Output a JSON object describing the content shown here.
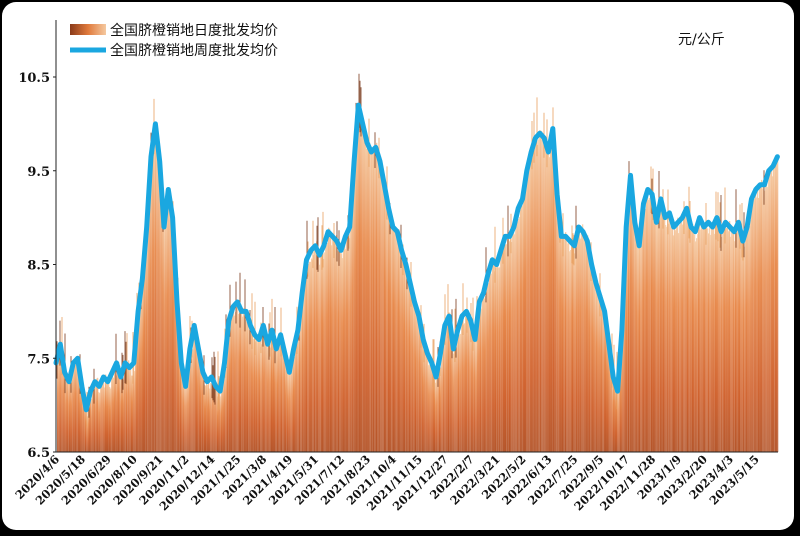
{
  "chart_data": {
    "type": "area",
    "title": "",
    "unit": "元/公斤",
    "ylim": [
      6.5,
      10.5
    ],
    "yticks": [
      "6.5",
      "7.5",
      "8.5",
      "9.5",
      "10.5"
    ],
    "ytick_values": [
      6.5,
      7.5,
      8.5,
      9.5,
      10.5
    ],
    "x_start": "2020-04-06",
    "x_end": "2023-06-20",
    "xtick_labels": [
      "2020/4/6",
      "2020/5/18",
      "2020/6/29",
      "2020/8/10",
      "2020/9/21",
      "2020/11/2",
      "2020/12/14",
      "2021/1/25",
      "2021/3/8",
      "2021/4/19",
      "2021/5/31",
      "2021/7/12",
      "2021/8/23",
      "2021/10/4",
      "2021/11/15",
      "2021/12/27",
      "2022/2/7",
      "2022/3/21",
      "2022/5/2",
      "2022/6/13",
      "2022/7/25",
      "2022/9/5",
      "2022/10/17",
      "2022/11/28",
      "2023/1/9",
      "2023/2/20",
      "2023/4/3",
      "2023/5/15"
    ],
    "legend_placement": "top-left",
    "series": [
      {
        "name": "全国脐橙销地日度批发均价",
        "kind": "daily-area",
        "color": "#e07a3c"
      },
      {
        "name": "全国脐橙销地周度批发均价",
        "kind": "weekly-line",
        "color": "#1aa7e0",
        "points": [
          [
            "2020-04-06",
            7.45
          ],
          [
            "2020-04-13",
            7.65
          ],
          [
            "2020-04-20",
            7.35
          ],
          [
            "2020-04-27",
            7.25
          ],
          [
            "2020-05-04",
            7.45
          ],
          [
            "2020-05-11",
            7.5
          ],
          [
            "2020-05-18",
            7.2
          ],
          [
            "2020-05-25",
            6.95
          ],
          [
            "2020-06-01",
            7.15
          ],
          [
            "2020-06-08",
            7.25
          ],
          [
            "2020-06-15",
            7.2
          ],
          [
            "2020-06-22",
            7.3
          ],
          [
            "2020-06-29",
            7.25
          ],
          [
            "2020-07-06",
            7.35
          ],
          [
            "2020-07-13",
            7.45
          ],
          [
            "2020-07-20",
            7.3
          ],
          [
            "2020-07-27",
            7.45
          ],
          [
            "2020-08-03",
            7.4
          ],
          [
            "2020-08-10",
            7.45
          ],
          [
            "2020-08-17",
            8.0
          ],
          [
            "2020-08-24",
            8.35
          ],
          [
            "2020-08-31",
            8.9
          ],
          [
            "2020-09-07",
            9.65
          ],
          [
            "2020-09-14",
            10.0
          ],
          [
            "2020-09-21",
            9.6
          ],
          [
            "2020-09-28",
            8.9
          ],
          [
            "2020-10-05",
            9.3
          ],
          [
            "2020-10-12",
            9.0
          ],
          [
            "2020-10-19",
            8.1
          ],
          [
            "2020-10-26",
            7.45
          ],
          [
            "2020-11-02",
            7.2
          ],
          [
            "2020-11-09",
            7.6
          ],
          [
            "2020-11-16",
            7.85
          ],
          [
            "2020-11-23",
            7.6
          ],
          [
            "2020-11-30",
            7.35
          ],
          [
            "2020-12-07",
            7.25
          ],
          [
            "2020-12-14",
            7.3
          ],
          [
            "2020-12-21",
            7.2
          ],
          [
            "2020-12-28",
            7.15
          ],
          [
            "2021-01-04",
            7.45
          ],
          [
            "2021-01-11",
            7.9
          ],
          [
            "2021-01-18",
            8.05
          ],
          [
            "2021-01-25",
            8.1
          ],
          [
            "2021-02-01",
            8.0
          ],
          [
            "2021-02-08",
            8.0
          ],
          [
            "2021-02-15",
            7.85
          ],
          [
            "2021-02-22",
            7.75
          ],
          [
            "2021-03-01",
            7.7
          ],
          [
            "2021-03-08",
            7.85
          ],
          [
            "2021-03-15",
            7.65
          ],
          [
            "2021-03-22",
            7.8
          ],
          [
            "2021-03-29",
            7.6
          ],
          [
            "2021-04-05",
            7.75
          ],
          [
            "2021-04-12",
            7.55
          ],
          [
            "2021-04-19",
            7.35
          ],
          [
            "2021-04-26",
            7.6
          ],
          [
            "2021-05-03",
            7.8
          ],
          [
            "2021-05-10",
            8.2
          ],
          [
            "2021-05-17",
            8.55
          ],
          [
            "2021-05-24",
            8.65
          ],
          [
            "2021-05-31",
            8.7
          ],
          [
            "2021-06-07",
            8.6
          ],
          [
            "2021-06-14",
            8.7
          ],
          [
            "2021-06-21",
            8.85
          ],
          [
            "2021-06-28",
            8.8
          ],
          [
            "2021-07-05",
            8.75
          ],
          [
            "2021-07-12",
            8.65
          ],
          [
            "2021-07-19",
            8.8
          ],
          [
            "2021-07-26",
            8.9
          ],
          [
            "2021-08-02",
            9.6
          ],
          [
            "2021-08-09",
            10.2
          ],
          [
            "2021-08-16",
            10.0
          ],
          [
            "2021-08-23",
            9.8
          ],
          [
            "2021-08-30",
            9.7
          ],
          [
            "2021-09-06",
            9.75
          ],
          [
            "2021-09-13",
            9.6
          ],
          [
            "2021-09-20",
            9.35
          ],
          [
            "2021-09-27",
            9.1
          ],
          [
            "2021-10-04",
            8.9
          ],
          [
            "2021-10-11",
            8.85
          ],
          [
            "2021-10-18",
            8.65
          ],
          [
            "2021-10-25",
            8.5
          ],
          [
            "2021-11-01",
            8.3
          ],
          [
            "2021-11-08",
            8.1
          ],
          [
            "2021-11-15",
            7.95
          ],
          [
            "2021-11-22",
            7.7
          ],
          [
            "2021-11-29",
            7.55
          ],
          [
            "2021-12-06",
            7.45
          ],
          [
            "2021-12-13",
            7.3
          ],
          [
            "2021-12-20",
            7.55
          ],
          [
            "2021-12-27",
            7.85
          ],
          [
            "2022-01-03",
            7.95
          ],
          [
            "2022-01-10",
            7.6
          ],
          [
            "2022-01-17",
            7.8
          ],
          [
            "2022-01-24",
            7.95
          ],
          [
            "2022-01-31",
            8.0
          ],
          [
            "2022-02-07",
            7.9
          ],
          [
            "2022-02-14",
            7.7
          ],
          [
            "2022-02-21",
            8.1
          ],
          [
            "2022-02-28",
            8.2
          ],
          [
            "2022-03-07",
            8.4
          ],
          [
            "2022-03-14",
            8.55
          ],
          [
            "2022-03-21",
            8.5
          ],
          [
            "2022-03-28",
            8.65
          ],
          [
            "2022-04-04",
            8.8
          ],
          [
            "2022-04-11",
            8.8
          ],
          [
            "2022-04-18",
            8.9
          ],
          [
            "2022-04-25",
            9.1
          ],
          [
            "2022-05-02",
            9.2
          ],
          [
            "2022-05-09",
            9.5
          ],
          [
            "2022-05-16",
            9.7
          ],
          [
            "2022-05-23",
            9.85
          ],
          [
            "2022-05-30",
            9.9
          ],
          [
            "2022-06-06",
            9.85
          ],
          [
            "2022-06-13",
            9.7
          ],
          [
            "2022-06-20",
            9.95
          ],
          [
            "2022-06-27",
            9.25
          ],
          [
            "2022-07-04",
            8.8
          ],
          [
            "2022-07-11",
            8.8
          ],
          [
            "2022-07-18",
            8.75
          ],
          [
            "2022-07-25",
            8.7
          ],
          [
            "2022-08-01",
            8.9
          ],
          [
            "2022-08-08",
            8.85
          ],
          [
            "2022-08-15",
            8.75
          ],
          [
            "2022-08-22",
            8.5
          ],
          [
            "2022-08-29",
            8.3
          ],
          [
            "2022-09-05",
            8.15
          ],
          [
            "2022-09-12",
            8.0
          ],
          [
            "2022-09-19",
            7.65
          ],
          [
            "2022-09-26",
            7.3
          ],
          [
            "2022-10-03",
            7.15
          ],
          [
            "2022-10-10",
            7.8
          ],
          [
            "2022-10-17",
            8.9
          ],
          [
            "2022-10-24",
            9.45
          ],
          [
            "2022-10-31",
            8.95
          ],
          [
            "2022-11-07",
            8.7
          ],
          [
            "2022-11-14",
            9.15
          ],
          [
            "2022-11-21",
            9.3
          ],
          [
            "2022-11-28",
            9.25
          ],
          [
            "2022-12-05",
            8.95
          ],
          [
            "2022-12-12",
            9.2
          ],
          [
            "2022-12-19",
            9.0
          ],
          [
            "2022-12-26",
            9.05
          ],
          [
            "2023-01-02",
            8.9
          ],
          [
            "2023-01-09",
            8.95
          ],
          [
            "2023-01-16",
            9.0
          ],
          [
            "2023-01-23",
            9.1
          ],
          [
            "2023-01-30",
            8.9
          ],
          [
            "2023-02-06",
            8.85
          ],
          [
            "2023-02-13",
            9.0
          ],
          [
            "2023-02-20",
            8.9
          ],
          [
            "2023-02-27",
            8.95
          ],
          [
            "2023-03-06",
            8.9
          ],
          [
            "2023-03-13",
            9.0
          ],
          [
            "2023-03-20",
            8.85
          ],
          [
            "2023-03-27",
            8.95
          ],
          [
            "2023-04-03",
            8.9
          ],
          [
            "2023-04-10",
            8.85
          ],
          [
            "2023-04-17",
            8.95
          ],
          [
            "2023-04-24",
            8.75
          ],
          [
            "2023-05-01",
            8.9
          ],
          [
            "2023-05-08",
            9.2
          ],
          [
            "2023-05-15",
            9.3
          ],
          [
            "2023-05-22",
            9.35
          ],
          [
            "2023-05-29",
            9.35
          ],
          [
            "2023-06-05",
            9.5
          ],
          [
            "2023-06-12",
            9.55
          ],
          [
            "2023-06-19",
            9.65
          ]
        ]
      }
    ],
    "grid": false
  }
}
